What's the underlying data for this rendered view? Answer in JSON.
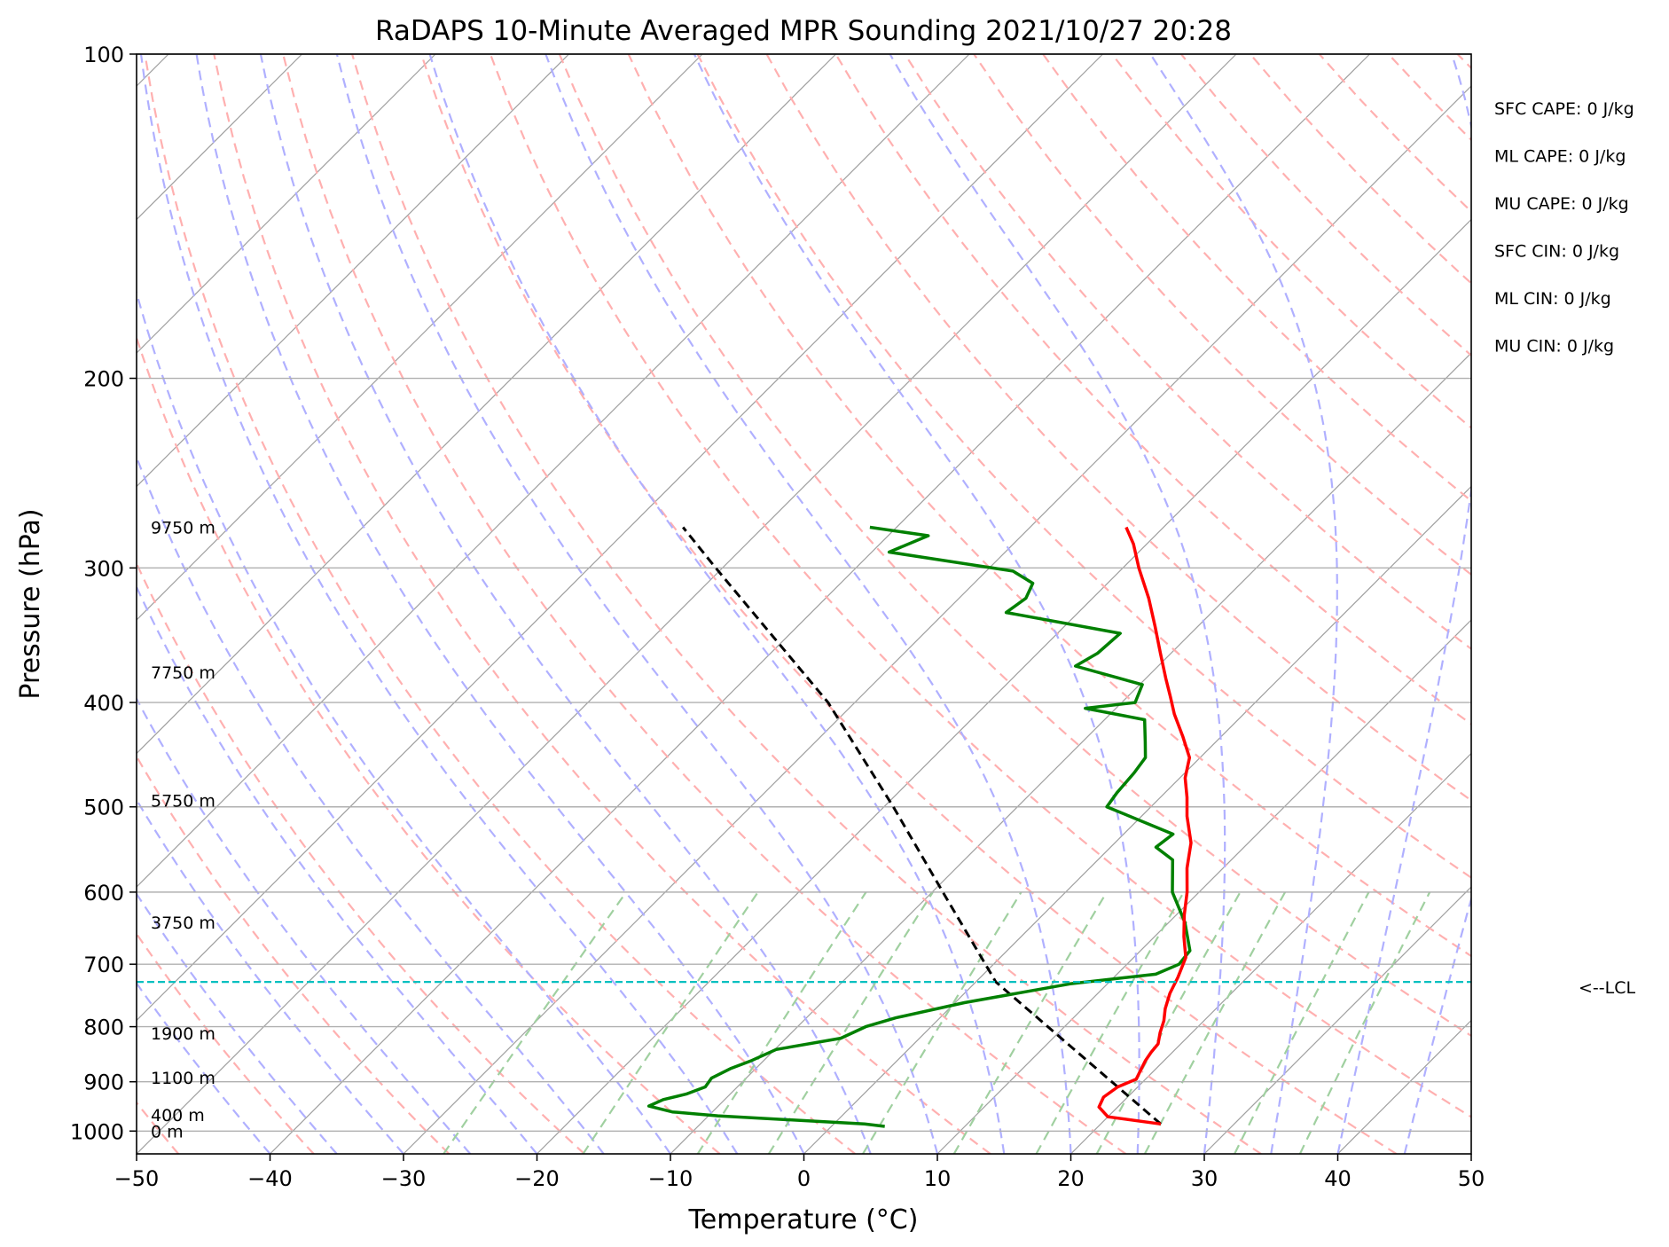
{
  "chart_data": {
    "type": "line",
    "title": "RaDAPS 10-Minute Averaged MPR Sounding 2021/10/27 20:28",
    "xlabel": "Temperature (°C)",
    "ylabel": "Pressure (hPa)",
    "xlim": [
      -50,
      50
    ],
    "ylim": [
      1050,
      100
    ],
    "y_scale": "log",
    "grid": true,
    "x_ticks": [
      "−50",
      "−40",
      "−30",
      "−20",
      "−10",
      "0",
      "10",
      "20",
      "30",
      "40",
      "50"
    ],
    "y_ticks": [
      {
        "p": 100,
        "label": "100"
      },
      {
        "p": 200,
        "label": "200"
      },
      {
        "p": 300,
        "label": "300"
      },
      {
        "p": 400,
        "label": "400"
      },
      {
        "p": 500,
        "label": "500"
      },
      {
        "p": 600,
        "label": "600"
      },
      {
        "p": 700,
        "label": "700"
      },
      {
        "p": 800,
        "label": "800"
      },
      {
        "p": 900,
        "label": "900"
      },
      {
        "p": 1000,
        "label": "1000"
      }
    ],
    "temperature": {
      "color": "#ff0000",
      "points": [
        {
          "p": 985,
          "t": 24.5
        },
        {
          "p": 970,
          "t": 20.0
        },
        {
          "p": 950,
          "t": 18.6
        },
        {
          "p": 930,
          "t": 18.2
        },
        {
          "p": 910,
          "t": 18.5
        },
        {
          "p": 895,
          "t": 19.3
        },
        {
          "p": 880,
          "t": 19.0
        },
        {
          "p": 860,
          "t": 18.6
        },
        {
          "p": 845,
          "t": 18.4
        },
        {
          "p": 830,
          "t": 18.3
        },
        {
          "p": 810,
          "t": 17.6
        },
        {
          "p": 790,
          "t": 17.0
        },
        {
          "p": 770,
          "t": 16.2
        },
        {
          "p": 745,
          "t": 15.4
        },
        {
          "p": 720,
          "t": 14.8
        },
        {
          "p": 690,
          "t": 13.9
        },
        {
          "p": 660,
          "t": 12.2
        },
        {
          "p": 630,
          "t": 10.6
        },
        {
          "p": 600,
          "t": 9.1
        },
        {
          "p": 570,
          "t": 7.3
        },
        {
          "p": 540,
          "t": 5.7
        },
        {
          "p": 510,
          "t": 3.4
        },
        {
          "p": 490,
          "t": 2.0
        },
        {
          "p": 470,
          "t": 0.4
        },
        {
          "p": 450,
          "t": -0.8
        },
        {
          "p": 430,
          "t": -2.9
        },
        {
          "p": 410,
          "t": -5.2
        },
        {
          "p": 395,
          "t": -6.8
        },
        {
          "p": 380,
          "t": -8.5
        },
        {
          "p": 360,
          "t": -10.8
        },
        {
          "p": 340,
          "t": -13.2
        },
        {
          "p": 320,
          "t": -15.8
        },
        {
          "p": 300,
          "t": -18.8
        },
        {
          "p": 285,
          "t": -21.0
        },
        {
          "p": 275,
          "t": -22.8
        }
      ]
    },
    "dewpoint": {
      "color": "#008000",
      "points": [
        {
          "p": 990,
          "t": 4.0
        },
        {
          "p": 985,
          "t": 2.3
        },
        {
          "p": 977,
          "t": -3.1
        },
        {
          "p": 968,
          "t": -9.3
        },
        {
          "p": 960,
          "t": -13.0
        },
        {
          "p": 948,
          "t": -15.2
        },
        {
          "p": 935,
          "t": -14.6
        },
        {
          "p": 924,
          "t": -13.3
        },
        {
          "p": 910,
          "t": -12.4
        },
        {
          "p": 893,
          "t": -12.6
        },
        {
          "p": 875,
          "t": -11.9
        },
        {
          "p": 860,
          "t": -10.9
        },
        {
          "p": 840,
          "t": -9.9
        },
        {
          "p": 820,
          "t": -5.9
        },
        {
          "p": 800,
          "t": -4.9
        },
        {
          "p": 785,
          "t": -3.3
        },
        {
          "p": 760,
          "t": 0.7
        },
        {
          "p": 730,
          "t": 7.2
        },
        {
          "p": 715,
          "t": 12.9
        },
        {
          "p": 700,
          "t": 13.9
        },
        {
          "p": 680,
          "t": 13.7
        },
        {
          "p": 640,
          "t": 11.2
        },
        {
          "p": 600,
          "t": 8.0
        },
        {
          "p": 560,
          "t": 5.6
        },
        {
          "p": 545,
          "t": 3.4
        },
        {
          "p": 530,
          "t": 3.7
        },
        {
          "p": 500,
          "t": -3.3
        },
        {
          "p": 485,
          "t": -3.6
        },
        {
          "p": 465,
          "t": -3.8
        },
        {
          "p": 450,
          "t": -4.1
        },
        {
          "p": 435,
          "t": -5.3
        },
        {
          "p": 415,
          "t": -7.0
        },
        {
          "p": 405,
          "t": -12.3
        },
        {
          "p": 400,
          "t": -9.0
        },
        {
          "p": 385,
          "t": -9.8
        },
        {
          "p": 370,
          "t": -16.2
        },
        {
          "p": 360,
          "t": -15.5
        },
        {
          "p": 345,
          "t": -15.3
        },
        {
          "p": 330,
          "t": -25.4
        },
        {
          "p": 320,
          "t": -25.0
        },
        {
          "p": 310,
          "t": -25.6
        },
        {
          "p": 302,
          "t": -28.0
        },
        {
          "p": 290,
          "t": -38.7
        },
        {
          "p": 280,
          "t": -37.0
        },
        {
          "p": 275,
          "t": -42.0
        }
      ]
    },
    "parcel": {
      "color": "#000000",
      "points": [
        {
          "p": 985,
          "t": 24.5
        },
        {
          "p": 727,
          "t": 1.5
        },
        {
          "p": 600,
          "t": -9.2
        },
        {
          "p": 500,
          "t": -19.3
        },
        {
          "p": 400,
          "t": -32.0
        },
        {
          "p": 300,
          "t": -50.5
        },
        {
          "p": 275,
          "t": -56.0
        }
      ]
    },
    "lcl": {
      "p": 727,
      "label": "<--LCL",
      "color": "#00c0c0"
    },
    "height_labels": [
      {
        "p": 275,
        "label": "9750 m"
      },
      {
        "p": 375,
        "label": "7750 m"
      },
      {
        "p": 493,
        "label": "5750 m"
      },
      {
        "p": 640,
        "label": "3750 m"
      },
      {
        "p": 811,
        "label": "1900 m"
      },
      {
        "p": 892,
        "label": "1100 m"
      },
      {
        "p": 966,
        "label": "400 m"
      },
      {
        "p": 1000,
        "label": "0 m"
      }
    ],
    "indices": [
      "SFC CAPE: 0 J/kg",
      "ML CAPE: 0 J/kg",
      "MU CAPE: 0 J/kg",
      "SFC CIN: 0 J/kg",
      "ML CIN: 0 J/kg",
      "MU CIN: 0 J/kg"
    ],
    "background_lines": {
      "isotherm_color": "#a0a0a0",
      "dry_adiabat_color": "#ffb0b0",
      "moist_adiabat_color": "#b0b0ff",
      "mixing_ratio_color": "#a0d0a0"
    }
  }
}
